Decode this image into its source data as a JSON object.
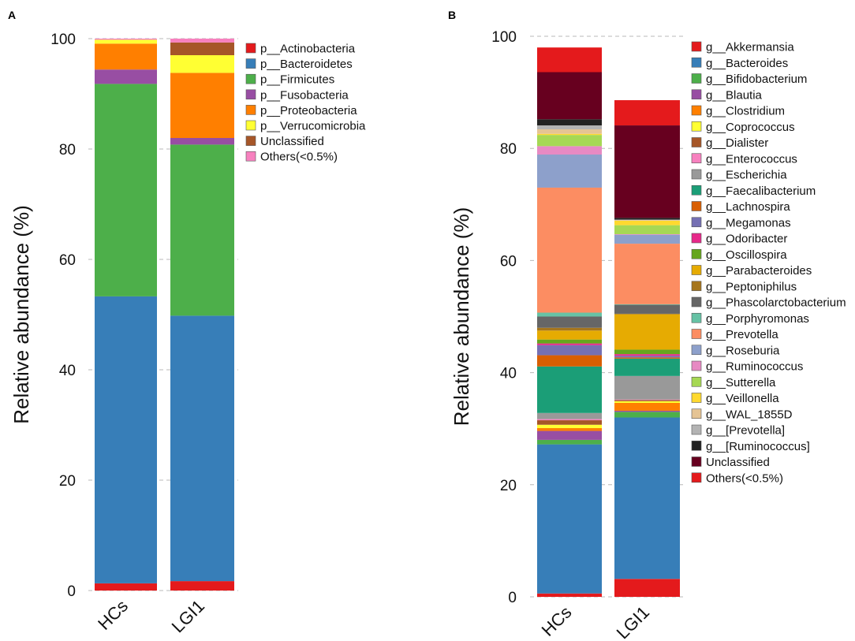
{
  "chart_data": [
    {
      "type": "bar",
      "stacked": true,
      "panel_label": "A",
      "ylabel": "Relative abundance (%)",
      "ylim": [
        0,
        100
      ],
      "yticks": [
        0,
        20,
        40,
        60,
        80,
        100
      ],
      "grid": true,
      "categories": [
        "HCs",
        "LGI1"
      ],
      "series": [
        {
          "name": "p__Actinobacteria",
          "color": "#e41a1c",
          "values": [
            1.3,
            1.7
          ]
        },
        {
          "name": "p__Bacteroidetes",
          "color": "#377eb8",
          "values": [
            52.0,
            48.1
          ]
        },
        {
          "name": "p__Firmicutes",
          "color": "#4daf4a",
          "values": [
            38.5,
            31.0
          ]
        },
        {
          "name": "p__Fusobacteria",
          "color": "#984ea3",
          "values": [
            2.6,
            1.2
          ]
        },
        {
          "name": "p__Proteobacteria",
          "color": "#ff7f00",
          "values": [
            4.7,
            11.8
          ]
        },
        {
          "name": "p__Verrucomicrobia",
          "color": "#ffff33",
          "values": [
            0.7,
            3.2
          ]
        },
        {
          "name": "Unclassified",
          "color": "#a65628",
          "values": [
            0.0,
            2.3
          ]
        },
        {
          "name": "Others(<0.5%)",
          "color": "#f781bf",
          "values": [
            0.2,
            0.7
          ]
        }
      ]
    },
    {
      "type": "bar",
      "stacked": true,
      "panel_label": "B",
      "ylabel": "Relative abundance (%)",
      "ylim": [
        0,
        100
      ],
      "yticks": [
        0,
        20,
        40,
        60,
        80,
        100
      ],
      "grid": true,
      "categories": [
        "HCs",
        "LGI1"
      ],
      "series": [
        {
          "name": "g__Akkermansia",
          "color": "#e41a1c",
          "values": [
            0.6,
            3.2
          ]
        },
        {
          "name": "g__Bacteroides",
          "color": "#377eb8",
          "values": [
            26.6,
            28.8
          ]
        },
        {
          "name": "g__Bifidobacterium",
          "color": "#4daf4a",
          "values": [
            0.8,
            1.0
          ]
        },
        {
          "name": "g__Blautia",
          "color": "#984ea3",
          "values": [
            1.6,
            0.2
          ]
        },
        {
          "name": "g__Clostridium",
          "color": "#ff7f00",
          "values": [
            0.5,
            1.4
          ]
        },
        {
          "name": "g__Coprococcus",
          "color": "#ffff33",
          "values": [
            0.6,
            0.3
          ]
        },
        {
          "name": "g__Dialister",
          "color": "#a65628",
          "values": [
            0.8,
            0.2
          ]
        },
        {
          "name": "g__Enterococcus",
          "color": "#f781bf",
          "values": [
            0.2,
            0.1
          ]
        },
        {
          "name": "g__Escherichia",
          "color": "#999999",
          "values": [
            1.1,
            4.2
          ]
        },
        {
          "name": "g__Faecalibacterium",
          "color": "#1b9e77",
          "values": [
            8.3,
            3.1
          ]
        },
        {
          "name": "g__Lachnospira",
          "color": "#d95f02",
          "values": [
            2.0,
            0.2
          ]
        },
        {
          "name": "g__Megamonas",
          "color": "#7570b3",
          "values": [
            1.8,
            0.3
          ]
        },
        {
          "name": "g__Odoribacter",
          "color": "#e7298a",
          "values": [
            0.3,
            0.3
          ]
        },
        {
          "name": "g__Oscillospira",
          "color": "#66a61e",
          "values": [
            0.7,
            0.8
          ]
        },
        {
          "name": "g__Parabacteroides",
          "color": "#e6ab02",
          "values": [
            1.6,
            6.3
          ]
        },
        {
          "name": "g__Peptoniphilus",
          "color": "#a6761d",
          "values": [
            0.5,
            0.1
          ]
        },
        {
          "name": "g__Phascolarctobacterium",
          "color": "#666666",
          "values": [
            2.0,
            1.6
          ]
        },
        {
          "name": "g__Porphyromonas",
          "color": "#66c2a5",
          "values": [
            0.7,
            0.1
          ]
        },
        {
          "name": "g__Prevotella",
          "color": "#fc8d62",
          "values": [
            22.3,
            10.8
          ]
        },
        {
          "name": "g__Roseburia",
          "color": "#8da0cb",
          "values": [
            5.9,
            1.6
          ]
        },
        {
          "name": "g__Ruminococcus",
          "color": "#e78ac3",
          "values": [
            1.5,
            0.1
          ]
        },
        {
          "name": "g__Sutterella",
          "color": "#a6d854",
          "values": [
            2.0,
            1.6
          ]
        },
        {
          "name": "g__Veillonella",
          "color": "#ffd92f",
          "values": [
            0.2,
            0.8
          ]
        },
        {
          "name": "g__WAL_1855D",
          "color": "#e5c494",
          "values": [
            0.8,
            0.1
          ]
        },
        {
          "name": "g__[Prevotella]",
          "color": "#b3b3b3",
          "values": [
            0.7,
            0.1
          ]
        },
        {
          "name": "g__[Ruminococcus]",
          "color": "#222222",
          "values": [
            1.1,
            0.3
          ]
        },
        {
          "name": "Unclassified",
          "color": "#67001f",
          "values": [
            8.4,
            16.5
          ]
        },
        {
          "name": "Others(<0.5%)",
          "color": "#e41a1c",
          "values": [
            4.4,
            4.5
          ]
        }
      ]
    }
  ]
}
